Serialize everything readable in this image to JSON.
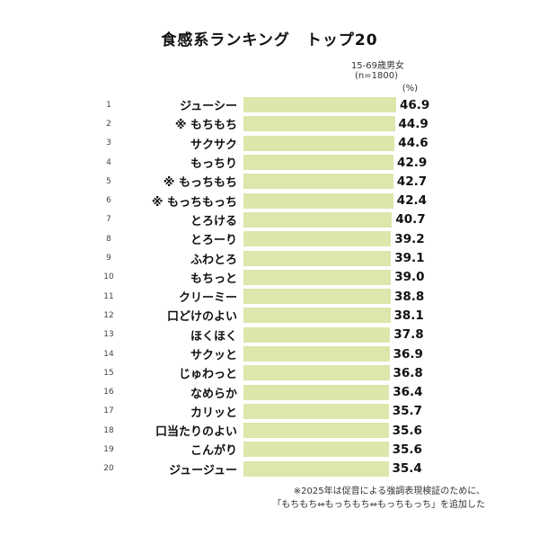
{
  "title": "食感系ランキング　トップ20",
  "meta": {
    "audience": "15-69歳男女",
    "sample": "(n=1800)",
    "unit": "(%)"
  },
  "footnotes": [
    "※2025年は促音による強調表現検証のために、",
    "「もちもち⇔もっちもち⇔もっちもっち」を追加した"
  ],
  "colors": {
    "bar": "#dbe7ab",
    "text": "#1a1a1a"
  },
  "chart_data": {
    "type": "bar",
    "orientation": "horizontal",
    "title": "食感系ランキング　トップ20",
    "unit": "%",
    "xlim": [
      0,
      50
    ],
    "legend": "none",
    "grid": false,
    "ranks": [
      1,
      2,
      3,
      4,
      5,
      6,
      7,
      8,
      9,
      10,
      11,
      12,
      13,
      14,
      15,
      16,
      17,
      18,
      19,
      20
    ],
    "categories": [
      "ジューシー",
      "もちもち",
      "サクサク",
      "もっちり",
      "もっちもち",
      "もっちもっち",
      "とろける",
      "とろーり",
      "ふわとろ",
      "もちっと",
      "クリーミー",
      "口どけのよい",
      "ほくほく",
      "サクッと",
      "じゅわっと",
      "なめらか",
      "カリッと",
      "口当たりのよい",
      "こんがり",
      "ジュージュー"
    ],
    "values": [
      46.9,
      44.9,
      44.6,
      42.9,
      42.7,
      42.4,
      40.7,
      39.2,
      39.1,
      39.0,
      38.8,
      38.1,
      37.8,
      36.9,
      36.8,
      36.4,
      35.7,
      35.6,
      35.6,
      35.4
    ],
    "marked": [
      false,
      true,
      false,
      false,
      true,
      true,
      false,
      false,
      false,
      false,
      false,
      false,
      false,
      false,
      false,
      false,
      false,
      false,
      false,
      false
    ],
    "mark_symbol": "※"
  }
}
